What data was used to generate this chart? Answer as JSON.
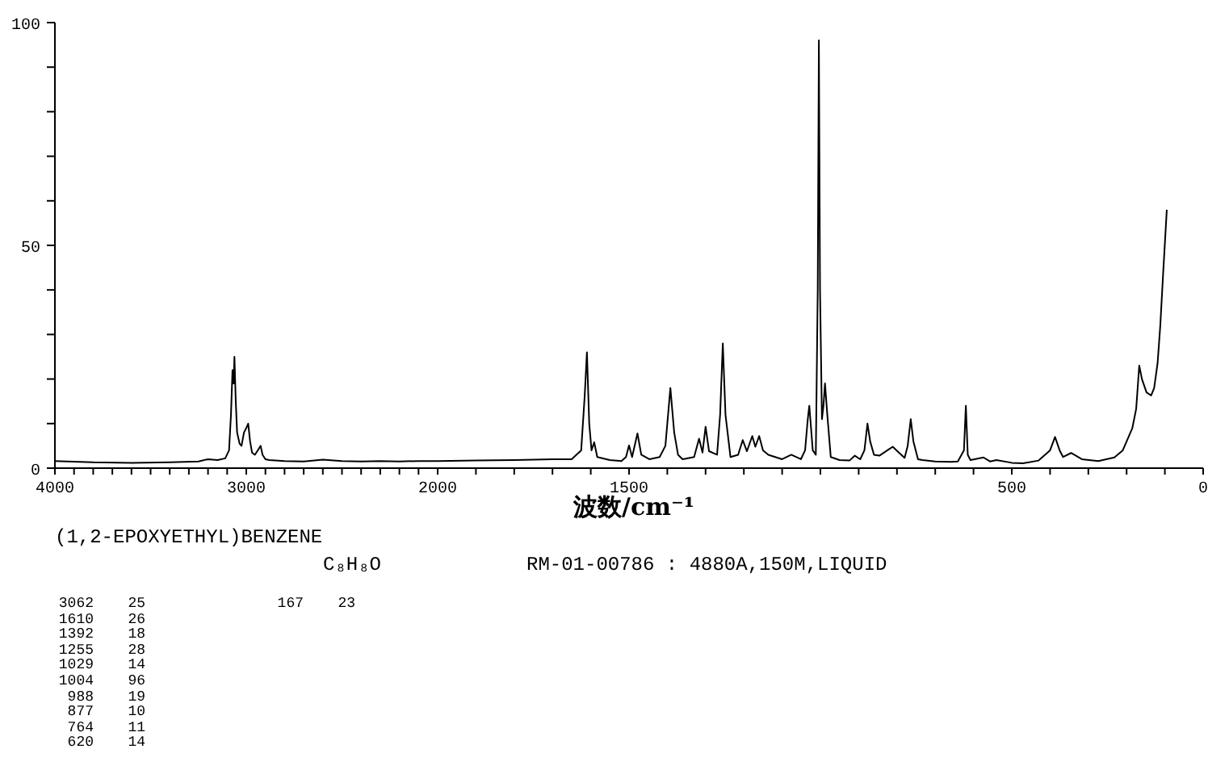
{
  "chart_data": [
    {
      "type": "line",
      "x": [
        4000,
        3800,
        3600,
        3400,
        3250,
        3200,
        3150,
        3110,
        3090,
        3080,
        3072,
        3066,
        3062,
        3055,
        3048,
        3035,
        3025,
        3012,
        3000,
        2990,
        2980,
        2970,
        2955,
        2940,
        2925,
        2915,
        2900,
        2880,
        2800,
        2700,
        2600,
        2500,
        2400,
        2300,
        2200,
        2100,
        2000
      ],
      "values": [
        1.6,
        1.3,
        1.2,
        1.3,
        1.5,
        2.0,
        1.8,
        2.2,
        4,
        12,
        22,
        19,
        25,
        15,
        8,
        5.5,
        5,
        8,
        9,
        10,
        6,
        3.5,
        3,
        4,
        5,
        3,
        2,
        1.8,
        1.6,
        1.5,
        1.9,
        1.6,
        1.5,
        1.6,
        1.5,
        1.6,
        1.6
      ],
      "color": "#000000",
      "xlim": [
        4000,
        2000
      ],
      "xticks": [
        4000,
        {
          "value": 3900,
          "label": null
        },
        {
          "value": 3800,
          "label": null
        },
        {
          "value": 3700,
          "label": null
        },
        {
          "value": 3600,
          "label": null
        },
        {
          "value": 3500,
          "label": null
        },
        {
          "value": 3400,
          "label": null
        },
        {
          "value": 3300,
          "label": null
        },
        {
          "value": 3200,
          "label": null
        },
        {
          "value": 3100,
          "label": null
        },
        3000,
        {
          "value": 2900,
          "label": null
        },
        {
          "value": 2800,
          "label": null
        },
        {
          "value": 2700,
          "label": null
        },
        {
          "value": 2600,
          "label": null
        },
        {
          "value": 2500,
          "label": null
        },
        {
          "value": 2400,
          "label": null
        },
        {
          "value": 2300,
          "label": null
        },
        {
          "value": 2200,
          "label": null
        },
        {
          "value": 2100,
          "label": null
        },
        2000
      ],
      "ylim": [
        0,
        100
      ],
      "yticks": [
        0,
        {
          "value": 10,
          "label": null
        },
        {
          "value": 20,
          "label": null
        },
        {
          "value": 30,
          "label": null
        },
        {
          "value": 40,
          "label": null
        },
        50,
        {
          "value": 60,
          "label": null
        },
        {
          "value": 70,
          "label": null
        },
        {
          "value": 80,
          "label": null
        },
        {
          "value": 90,
          "label": null
        },
        100
      ],
      "annotations": [
        "(1,2-EPOXYETHYL)BENZENE",
        "C₈H₈O",
        "RM-01-00786 : 4880A,150M,LIQUID",
        "3062 25",
        "1610 26",
        "1392 18",
        "1255 28",
        "1029 14",
        "1004 96",
        "988 19",
        "877 10",
        "764 11",
        "620 14",
        "167 23"
      ]
    },
    {
      "type": "line",
      "xlabel": "波数/cm⁻¹",
      "x": [
        2000,
        1900,
        1800,
        1700,
        1650,
        1625,
        1616,
        1610,
        1604,
        1598,
        1591,
        1583,
        1550,
        1520,
        1508,
        1500,
        1492,
        1478,
        1468,
        1447,
        1420,
        1405,
        1392,
        1382,
        1372,
        1360,
        1330,
        1317,
        1308,
        1300,
        1291,
        1270,
        1262,
        1255,
        1248,
        1235,
        1215,
        1203,
        1192,
        1178,
        1170,
        1160,
        1150,
        1136,
        1100,
        1076,
        1051,
        1040,
        1033,
        1029,
        1020,
        1012,
        1007,
        1004,
        1001,
        996,
        992,
        988,
        982,
        973,
        950,
        924,
        910,
        896,
        885,
        877,
        870,
        860,
        846,
        825,
        811,
        795,
        780,
        772,
        764,
        757,
        745,
        733,
        700,
        660,
        641,
        625,
        620,
        615,
        608,
        574,
        557,
        540,
        500,
        470,
        430,
        400,
        387,
        375,
        366,
        345,
        317,
        274,
        232,
        210,
        197,
        185,
        175,
        167,
        160,
        148,
        136,
        128,
        119,
        112,
        105,
        95
      ],
      "values": [
        1.6,
        1.7,
        1.8,
        2.0,
        2.0,
        4,
        16,
        26,
        10,
        4,
        5.8,
        2.5,
        1.8,
        1.6,
        2.5,
        5.1,
        2.5,
        7.8,
        3,
        2,
        2.5,
        5,
        18,
        8,
        3,
        2,
        2.5,
        6.6,
        3.5,
        9.3,
        3.8,
        3,
        12,
        28,
        12,
        2.5,
        3,
        6.3,
        3.8,
        7.2,
        4.8,
        7.2,
        4,
        3,
        2,
        3,
        2,
        4,
        11,
        14,
        4,
        3,
        40,
        96,
        40,
        11,
        14,
        19,
        12,
        2.5,
        1.8,
        1.7,
        2.8,
        2,
        4,
        10,
        6,
        3,
        2.8,
        4,
        4.8,
        3.5,
        2.3,
        5,
        11,
        6,
        2,
        1.8,
        1.5,
        1.4,
        1.5,
        4,
        14,
        3,
        1.8,
        2.4,
        1.5,
        1.8,
        1.2,
        1.1,
        1.7,
        4,
        7,
        4,
        2.5,
        3.4,
        2,
        1.6,
        2.4,
        4,
        6.6,
        9,
        13.3,
        23,
        20,
        17,
        16.3,
        18,
        23.6,
        32,
        43,
        58
      ],
      "color": "#000000",
      "xlim": [
        2000,
        0
      ],
      "xticks": [
        {
          "value": 1900,
          "label": null
        },
        {
          "value": 1800,
          "label": null
        },
        {
          "value": 1700,
          "label": null
        },
        {
          "value": 1600,
          "label": null
        },
        1500,
        {
          "value": 1400,
          "label": null
        },
        {
          "value": 1300,
          "label": null
        },
        {
          "value": 1200,
          "label": null
        },
        {
          "value": 1100,
          "label": null
        },
        {
          "value": 1000,
          "label": null
        },
        {
          "value": 900,
          "label": null
        },
        {
          "value": 800,
          "label": null
        },
        {
          "value": 700,
          "label": null
        },
        {
          "value": 600,
          "label": null
        },
        500,
        {
          "value": 400,
          "label": null
        },
        {
          "value": 300,
          "label": null
        },
        {
          "value": 200,
          "label": null
        },
        {
          "value": 100,
          "label": null
        },
        0
      ],
      "ylim": [
        0,
        100
      ],
      "tick_labels": "x"
    }
  ]
}
